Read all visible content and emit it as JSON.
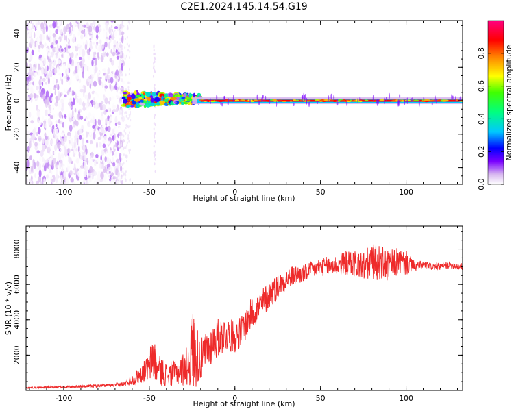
{
  "figure": {
    "title": "C2E1.2024.145.14.54.G19"
  },
  "chart_data": [
    {
      "type": "heatmap",
      "xlabel": "Height of straight line (km)",
      "ylabel": "Frequency (Hz)",
      "xlim": [
        -122,
        133
      ],
      "ylim": [
        -50,
        48
      ],
      "xticks": [
        -100,
        -50,
        0,
        50,
        100
      ],
      "yticks": [
        -40,
        -20,
        0,
        20,
        40
      ],
      "colorbar": {
        "label": "Normalized spectral amplitude",
        "range": [
          0,
          1
        ],
        "ticks": [
          0.0,
          0.2,
          0.4,
          0.6,
          0.8
        ],
        "colormap": [
          "#ffffff",
          "#d8b8f0",
          "#7a00ff",
          "#0000ff",
          "#00c8ff",
          "#00ff80",
          "#40ff00",
          "#ffff00",
          "#ff8000",
          "#ff0000",
          "#ff0080"
        ]
      },
      "regions": [
        {
          "x_range": [
            -122,
            -65
          ],
          "freq_range": [
            -50,
            48
          ],
          "amplitude_range": [
            0.0,
            0.15
          ],
          "description": "noise"
        },
        {
          "x_range": [
            -65,
            -20
          ],
          "freq_range": [
            -3,
            7
          ],
          "amplitude_range": [
            0.1,
            0.9
          ],
          "description": "blobby signal"
        },
        {
          "x_range": [
            -20,
            133
          ],
          "freq_range": [
            -1,
            1
          ],
          "amplitude_range": [
            0.6,
            0.95
          ],
          "description": "narrow carrier line"
        }
      ],
      "spike": {
        "x": -47,
        "freq_range": [
          -50,
          35
        ]
      }
    },
    {
      "type": "line",
      "xlabel": "Height of straight line (km)",
      "ylabel": "SNR (10 * v/v)",
      "xlim": [
        -122,
        133
      ],
      "ylim": [
        0,
        9300
      ],
      "xticks": [
        -100,
        -50,
        0,
        50,
        100
      ],
      "yticks": [
        2000,
        4000,
        6000,
        8000
      ],
      "line_color": "#ee2a2a",
      "x": [
        -122,
        -110,
        -100,
        -90,
        -80,
        -70,
        -65,
        -60,
        -55,
        -50,
        -48,
        -45,
        -40,
        -35,
        -30,
        -27,
        -25,
        -22,
        -20,
        -15,
        -10,
        -5,
        0,
        5,
        10,
        15,
        20,
        25,
        30,
        35,
        40,
        45,
        50,
        55,
        60,
        65,
        70,
        75,
        80,
        85,
        90,
        95,
        100,
        105,
        110,
        115,
        120,
        125,
        133
      ],
      "y": [
        150,
        180,
        200,
        230,
        260,
        300,
        350,
        600,
        900,
        1300,
        2000,
        1200,
        900,
        1000,
        1200,
        1500,
        2400,
        2000,
        1700,
        2400,
        3000,
        3200,
        3000,
        3500,
        4400,
        4800,
        5400,
        5900,
        6300,
        6500,
        6600,
        6800,
        7000,
        7000,
        7100,
        7200,
        7200,
        7000,
        7300,
        7200,
        7000,
        7300,
        7200,
        7000,
        7100,
        7000,
        7000,
        7100,
        7000
      ],
      "noise_amplitude": [
        40,
        50,
        60,
        70,
        80,
        90,
        120,
        300,
        500,
        800,
        1500,
        900,
        700,
        700,
        1000,
        1200,
        2500,
        1700,
        1200,
        1200,
        1100,
        1000,
        900,
        900,
        900,
        900,
        800,
        700,
        600,
        600,
        500,
        500,
        500,
        600,
        600,
        700,
        800,
        900,
        1000,
        1000,
        900,
        800,
        700,
        300,
        250,
        200,
        200,
        200,
        200
      ]
    }
  ]
}
